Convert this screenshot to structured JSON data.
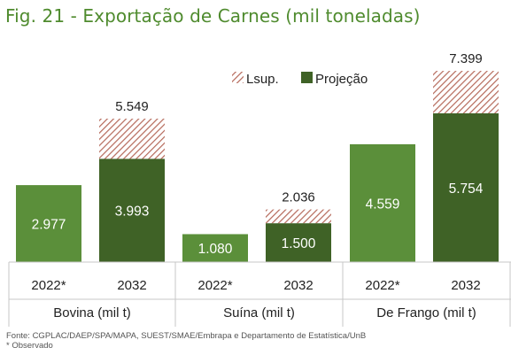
{
  "title": "Fig. 21 - Exportação de Carnes (mil toneladas)",
  "legend": {
    "items": [
      {
        "label": "Lsup.",
        "style": "hatch"
      },
      {
        "label": "Projeção",
        "style": "solid"
      }
    ]
  },
  "colors": {
    "title": "#4f8b2e",
    "observed": "#5b8f3a",
    "projection": "#3f6226",
    "hatch": "#b5695a",
    "value_label": "#ffffff",
    "top_label": "#222222",
    "axis": "#c7c7c7"
  },
  "chart_data": {
    "type": "bar",
    "title": "Fig. 21 - Exportação de Carnes (mil toneladas)",
    "groups": [
      {
        "name": "Bovina (mil t)",
        "bars": [
          {
            "x": "2022*",
            "value": 2977,
            "value_label": "2.977",
            "kind": "observed"
          },
          {
            "x": "2032",
            "value": 3993,
            "value_label": "3.993",
            "kind": "projection",
            "upper": 5549,
            "upper_label": "5.549"
          }
        ]
      },
      {
        "name": "Suína (mil t)",
        "bars": [
          {
            "x": "2022*",
            "value": 1080,
            "value_label": "1.080",
            "kind": "observed"
          },
          {
            "x": "2032",
            "value": 1500,
            "value_label": "1.500",
            "kind": "projection",
            "upper": 2036,
            "upper_label": "2.036"
          }
        ]
      },
      {
        "name": "De Frango (mil t)",
        "bars": [
          {
            "x": "2022*",
            "value": 4559,
            "value_label": "4.559",
            "kind": "observed"
          },
          {
            "x": "2032",
            "value": 5754,
            "value_label": "5.754",
            "kind": "projection",
            "upper": 7399,
            "upper_label": "7.399"
          }
        ]
      }
    ],
    "ylim": [
      0,
      7399
    ],
    "grid": false,
    "legend_position": "top-center"
  },
  "footer": {
    "source": "Fonte: CGPLAC/DAEP/SPA/MAPA, SUEST/SMAE/Embrapa e Departamento de Estatística/UnB",
    "note": "* Observado"
  }
}
